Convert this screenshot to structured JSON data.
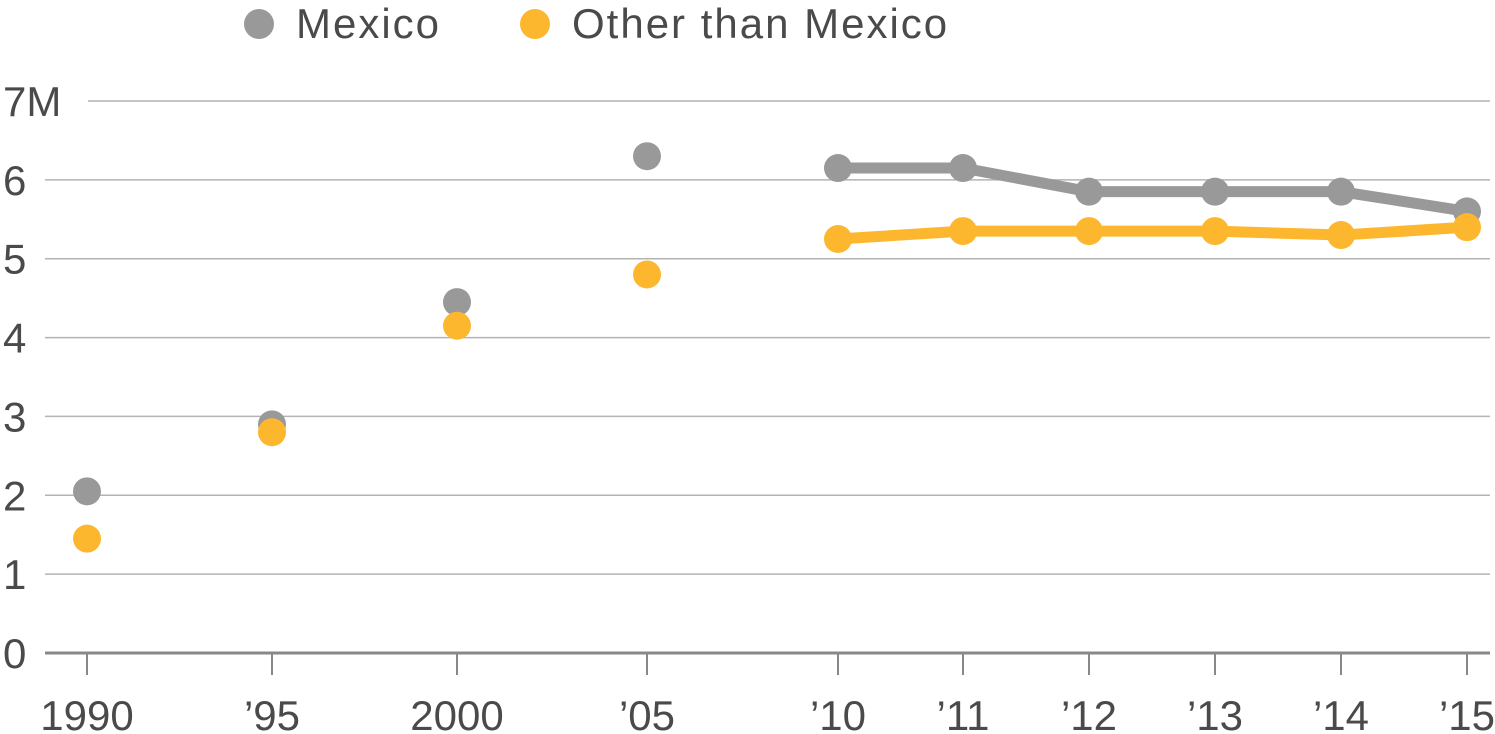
{
  "chart_data": {
    "type": "line",
    "title": "",
    "xlabel": "",
    "ylabel": "",
    "ylim": [
      0,
      7
    ],
    "yticks": [
      {
        "value": 0,
        "label": "0"
      },
      {
        "value": 1,
        "label": "1"
      },
      {
        "value": 2,
        "label": "2"
      },
      {
        "value": 3,
        "label": "3"
      },
      {
        "value": 4,
        "label": "4"
      },
      {
        "value": 5,
        "label": "5"
      },
      {
        "value": 6,
        "label": "6"
      },
      {
        "value": 7,
        "label": "7M"
      }
    ],
    "x": [
      1990,
      1995,
      2000,
      2005,
      2010,
      2011,
      2012,
      2013,
      2014,
      2015
    ],
    "xtick_labels": [
      "1990",
      "’95",
      "2000",
      "’05",
      "’10",
      "’11",
      "’12",
      "’13",
      "’14",
      "’15"
    ],
    "grid": true,
    "legend_position": "top",
    "series": [
      {
        "name": "Mexico",
        "color": "#999999",
        "values": [
          2.05,
          2.9,
          4.45,
          6.3,
          6.15,
          6.15,
          5.85,
          5.85,
          5.85,
          5.6
        ]
      },
      {
        "name": "Other than Mexico",
        "color": "#FDB72F",
        "values": [
          1.45,
          2.8,
          4.15,
          4.8,
          5.25,
          5.35,
          5.35,
          5.35,
          5.3,
          5.4
        ]
      }
    ]
  },
  "legend": {
    "items": [
      {
        "label": "Mexico",
        "color": "#999999"
      },
      {
        "label": "Other than Mexico",
        "color": "#FDB72F"
      }
    ]
  },
  "colors": {
    "grid": "#b3b3b3",
    "axis": "#888888",
    "text": "#4a4a4a"
  }
}
